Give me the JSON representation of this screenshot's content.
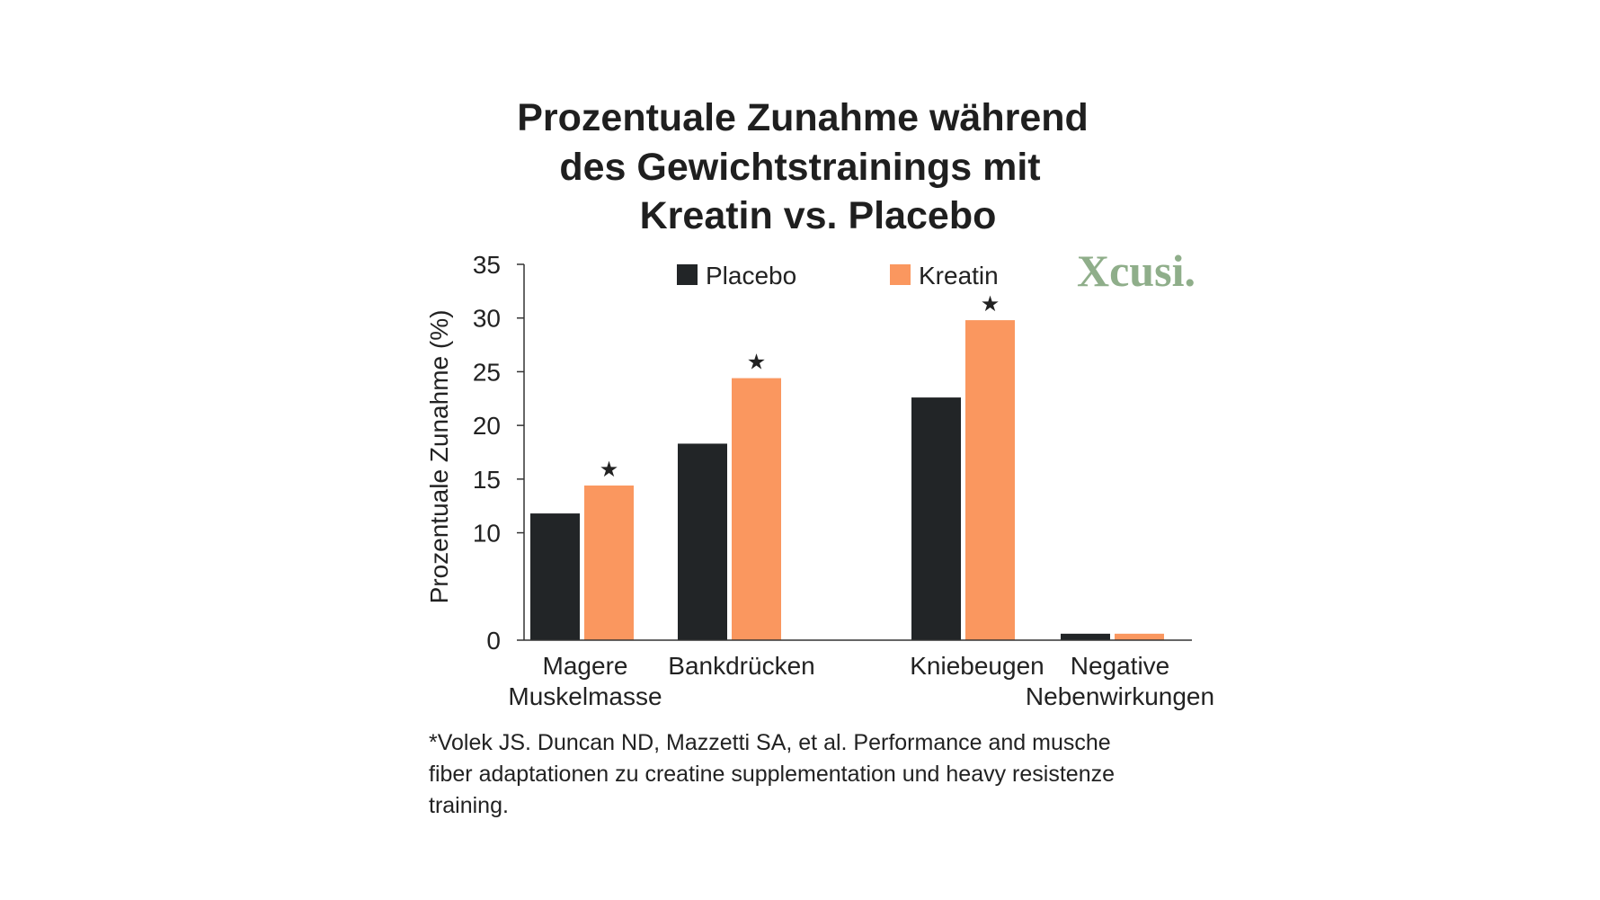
{
  "chart_data": {
    "type": "bar",
    "title": [
      "Prozentuale Zunahme während",
      "des Gewichtstrainings mit",
      "Kreatin vs. Placebo"
    ],
    "xlabel": "",
    "ylabel": "Prozentuale Zunahme (%)",
    "ylim": [
      0,
      35
    ],
    "yticks": [
      "0",
      "10",
      "15",
      "20",
      "25",
      "30",
      "35"
    ],
    "ytick_values": [
      0,
      10,
      15,
      20,
      25,
      30,
      35
    ],
    "categories": [
      [
        "Magere",
        "Muskelmasse"
      ],
      [
        "Bankdrücken"
      ],
      [
        "Kniebeugen"
      ],
      [
        "Negative",
        "Nebenwirkungen"
      ]
    ],
    "series": [
      {
        "name": "Placebo",
        "color": "#222527",
        "values": [
          11.8,
          18.3,
          22.6,
          0.6
        ]
      },
      {
        "name": "Kreatin",
        "color": "#fa975f",
        "values": [
          14.4,
          24.4,
          29.8,
          0.6
        ]
      }
    ],
    "significance_marker": "★",
    "significant": [
      true,
      true,
      true,
      false
    ],
    "legend_position": "top",
    "grid": false
  },
  "logo": "Xcusi.",
  "footnote": [
    "*Volek JS. Duncan ND, Mazzetti SA, et al. Performance and musche",
    "fiber adaptationen zu creatine supplementation und heavy resistenze",
    "training."
  ]
}
